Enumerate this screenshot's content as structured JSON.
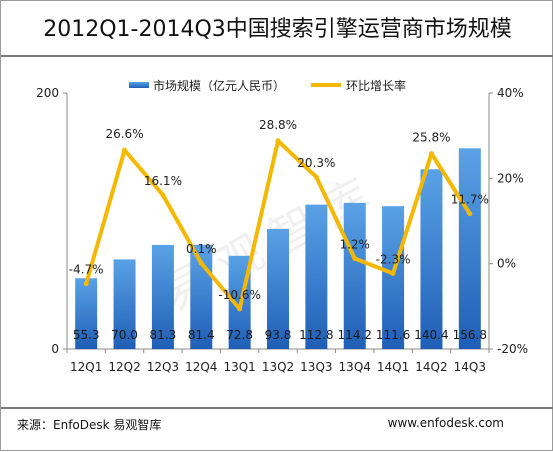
{
  "title": "2012Q1-2014Q3中国搜索引擎运营商市场规模",
  "source": "来源：EnfoDesk 易观智库",
  "website": "www.enfodesk.com",
  "watermark": "易观智库",
  "colors": {
    "bar_top": "#5aa2e6",
    "bar_bottom": "#1f5eb6",
    "line": "#f5b800",
    "axis": "#8c8c8c",
    "text": "#222222"
  },
  "chart_data": {
    "type": "bar",
    "categories": [
      "12Q1",
      "12Q2",
      "12Q3",
      "12Q4",
      "13Q1",
      "13Q2",
      "13Q3",
      "13Q4",
      "14Q1",
      "14Q2",
      "14Q3"
    ],
    "series": [
      {
        "name": "市场规模（亿元人民币）",
        "type": "bar",
        "axis": "left",
        "values": [
          55.3,
          70.0,
          81.3,
          81.4,
          72.8,
          93.8,
          112.8,
          114.2,
          111.6,
          140.4,
          156.8
        ],
        "labels": [
          "55.3",
          "70.0",
          "81.3",
          "81.4",
          "72.8",
          "93.8",
          "112.8",
          "114.2",
          "111.6",
          "140.4",
          "156.8"
        ]
      },
      {
        "name": "环比增长率",
        "type": "line",
        "axis": "right",
        "values": [
          -4.7,
          26.6,
          16.1,
          0.1,
          -10.6,
          28.8,
          20.3,
          1.2,
          -2.3,
          25.8,
          11.7
        ],
        "labels": [
          "-4.7%",
          "26.6%",
          "16.1%",
          "0.1%",
          "-10.6%",
          "28.8%",
          "20.3%",
          "1.2%",
          "-2.3%",
          "25.8%",
          "11.7%"
        ]
      }
    ],
    "left_axis": {
      "ticks": [
        "0",
        "200"
      ],
      "ylim": [
        0,
        200
      ]
    },
    "right_axis": {
      "ticks": [
        "40%",
        "20%",
        "0%",
        "-20%"
      ],
      "ylim": [
        -20,
        40
      ]
    },
    "legend_placement": "top-center",
    "grid": false
  }
}
